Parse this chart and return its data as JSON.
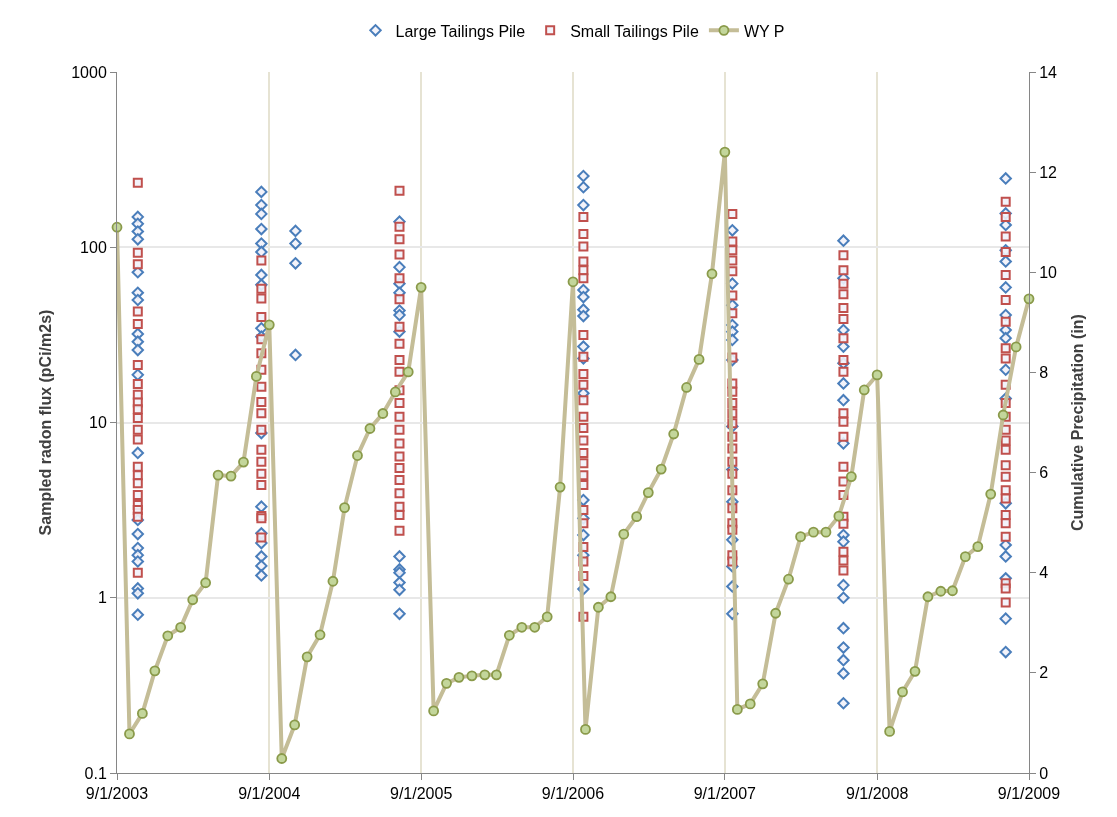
{
  "chart_data": {
    "type": "scatter",
    "ylabel": "Sampled radon flux (pCi/m2s)",
    "y2label": "Cumulative Precipitation (in)",
    "log": "y",
    "grid": true,
    "legend": "top",
    "xlim": [
      "2003-09-01",
      "2009-09-01"
    ],
    "xticks": [
      {
        "value": "2003-09-01",
        "label": "9/1/2003"
      },
      {
        "value": "2004-09-01",
        "label": "9/1/2004"
      },
      {
        "value": "2005-09-01",
        "label": "9/1/2005"
      },
      {
        "value": "2006-09-01",
        "label": "9/1/2006"
      },
      {
        "value": "2007-09-01",
        "label": "9/1/2007"
      },
      {
        "value": "2008-09-01",
        "label": "9/1/2008"
      },
      {
        "value": "2009-09-01",
        "label": "9/1/2009"
      }
    ],
    "ylim": [
      0.1,
      1000
    ],
    "yticks": [
      0.1,
      1,
      10,
      100,
      1000
    ],
    "y2lim": [
      0,
      14
    ],
    "y2ticks": [
      0,
      2,
      4,
      6,
      8,
      10,
      12,
      14
    ],
    "series": [
      {
        "name": "Large Tailings Pile",
        "marker": "diamond",
        "color": "#4a7ebb",
        "x": [
          "2003-10-21",
          "2003-10-21",
          "2003-10-21",
          "2003-10-21",
          "2003-10-21",
          "2003-10-21",
          "2003-10-21",
          "2003-10-21",
          "2003-10-21",
          "2003-10-21",
          "2003-10-21",
          "2003-10-21",
          "2003-10-21",
          "2003-10-21",
          "2003-10-21",
          "2003-10-21",
          "2003-10-21",
          "2003-10-21",
          "2003-10-21",
          "2003-10-21",
          "2004-08-13",
          "2004-08-13",
          "2004-08-13",
          "2004-08-13",
          "2004-08-13",
          "2004-08-13",
          "2004-08-13",
          "2004-08-13",
          "2004-08-13",
          "2004-08-13",
          "2004-08-13",
          "2004-08-13",
          "2004-08-13",
          "2004-08-13",
          "2004-08-13",
          "2004-08-13",
          "2004-08-13",
          "2004-11-03",
          "2004-11-03",
          "2004-11-03",
          "2004-11-03",
          "2005-07-11",
          "2005-07-11",
          "2005-07-11",
          "2005-07-11",
          "2005-07-11",
          "2005-07-11",
          "2005-07-11",
          "2005-07-11",
          "2005-07-11",
          "2005-07-11",
          "2005-07-11",
          "2005-07-11",
          "2005-07-11",
          "2006-09-26",
          "2006-09-26",
          "2006-09-26",
          "2006-09-26",
          "2006-09-26",
          "2006-09-26",
          "2006-09-26",
          "2006-09-26",
          "2006-09-26",
          "2006-09-26",
          "2006-09-26",
          "2006-09-26",
          "2006-09-26",
          "2006-09-26",
          "2006-09-26",
          "2007-09-19",
          "2007-09-19",
          "2007-09-19",
          "2007-09-19",
          "2007-09-19",
          "2007-09-19",
          "2007-09-19",
          "2007-09-19",
          "2007-09-19",
          "2007-09-19",
          "2007-09-19",
          "2007-09-19",
          "2007-09-19",
          "2007-09-19",
          "2008-06-12",
          "2008-06-12",
          "2008-06-12",
          "2008-06-12",
          "2008-06-12",
          "2008-06-12",
          "2008-06-12",
          "2008-06-12",
          "2008-06-12",
          "2008-06-12",
          "2008-06-12",
          "2008-06-12",
          "2008-06-12",
          "2008-06-12",
          "2008-06-12",
          "2008-06-12",
          "2008-06-12",
          "2009-07-07",
          "2009-07-07",
          "2009-07-07",
          "2009-07-07",
          "2009-07-07",
          "2009-07-07",
          "2009-07-07",
          "2009-07-07",
          "2009-07-07",
          "2009-07-07",
          "2009-07-07",
          "2009-07-07",
          "2009-07-07",
          "2009-07-07",
          "2009-07-07",
          "2009-07-07",
          "2009-07-07"
        ],
        "values": [
          149,
          136,
          123,
          111,
          72,
          55,
          50,
          32,
          28.9,
          25.9,
          18.7,
          6.7,
          2.78,
          2.31,
          1.92,
          1.75,
          1.61,
          1.13,
          1.06,
          0.8,
          207,
          174,
          155,
          127,
          105,
          94,
          69.5,
          61,
          34.5,
          30.9,
          8.7,
          3.31,
          2.33,
          2.05,
          1.72,
          1.52,
          1.34,
          124,
          105,
          81,
          24.3,
          140,
          77,
          62,
          55,
          43.5,
          41,
          33,
          1.72,
          1.45,
          1.39,
          1.22,
          1.11,
          0.81,
          255,
          220,
          174,
          57,
          52,
          44,
          40.5,
          27.1,
          23.2,
          14.7,
          3.61,
          2.84,
          2.28,
          1.75,
          1.12,
          125,
          62,
          46.7,
          36,
          33,
          29.6,
          22.7,
          9.5,
          5.4,
          3.53,
          2.14,
          1.51,
          1.16,
          0.81,
          109,
          66.5,
          33.7,
          27.1,
          21.8,
          16.7,
          13.4,
          7.6,
          2.28,
          2.09,
          1.18,
          1.0,
          0.67,
          0.52,
          0.44,
          0.37,
          0.25,
          247,
          156,
          134,
          96,
          83,
          59,
          41,
          33.7,
          30.3,
          20,
          13.7,
          3.46,
          2.0,
          1.72,
          1.29,
          0.76,
          0.49
        ]
      },
      {
        "name": "Small Tailings Pile",
        "marker": "square",
        "color": "#c0504d",
        "x": [
          "2003-10-21",
          "2003-10-21",
          "2003-10-21",
          "2003-10-21",
          "2003-10-21",
          "2003-10-21",
          "2003-10-21",
          "2003-10-21",
          "2003-10-21",
          "2003-10-21",
          "2003-10-21",
          "2003-10-21",
          "2003-10-21",
          "2003-10-21",
          "2003-10-21",
          "2003-10-21",
          "2003-10-21",
          "2003-10-21",
          "2003-10-21",
          "2003-10-21",
          "2003-10-21",
          "2004-08-13",
          "2004-08-13",
          "2004-08-13",
          "2004-08-13",
          "2004-08-13",
          "2004-08-13",
          "2004-08-13",
          "2004-08-13",
          "2004-08-13",
          "2004-08-13",
          "2004-08-13",
          "2004-08-13",
          "2004-08-13",
          "2004-08-13",
          "2004-08-13",
          "2004-08-13",
          "2004-08-13",
          "2004-08-13",
          "2005-07-11",
          "2005-07-11",
          "2005-07-11",
          "2005-07-11",
          "2005-07-11",
          "2005-07-11",
          "2005-07-11",
          "2005-07-11",
          "2005-07-11",
          "2005-07-11",
          "2005-07-11",
          "2005-07-11",
          "2005-07-11",
          "2005-07-11",
          "2005-07-11",
          "2005-07-11",
          "2005-07-11",
          "2005-07-11",
          "2005-07-11",
          "2005-07-11",
          "2005-07-11",
          "2005-07-11",
          "2006-09-26",
          "2006-09-26",
          "2006-09-26",
          "2006-09-26",
          "2006-09-26",
          "2006-09-26",
          "2006-09-26",
          "2006-09-26",
          "2006-09-26",
          "2006-09-26",
          "2006-09-26",
          "2006-09-26",
          "2006-09-26",
          "2006-09-26",
          "2006-09-26",
          "2006-09-26",
          "2006-09-26",
          "2006-09-26",
          "2006-09-26",
          "2006-09-26",
          "2006-09-26",
          "2006-09-26",
          "2006-09-26",
          "2006-09-26",
          "2007-09-19",
          "2007-09-19",
          "2007-09-19",
          "2007-09-19",
          "2007-09-19",
          "2007-09-19",
          "2007-09-19",
          "2007-09-19",
          "2007-09-19",
          "2007-09-19",
          "2007-09-19",
          "2007-09-19",
          "2007-09-19",
          "2007-09-19",
          "2007-09-19",
          "2007-09-19",
          "2007-09-19",
          "2007-09-19",
          "2007-09-19",
          "2007-09-19",
          "2007-09-19",
          "2007-09-19",
          "2007-09-19",
          "2008-06-12",
          "2008-06-12",
          "2008-06-12",
          "2008-06-12",
          "2008-06-12",
          "2008-06-12",
          "2008-06-12",
          "2008-06-12",
          "2008-06-12",
          "2008-06-12",
          "2008-06-12",
          "2008-06-12",
          "2008-06-12",
          "2008-06-12",
          "2008-06-12",
          "2008-06-12",
          "2008-06-12",
          "2008-06-12",
          "2008-06-12",
          "2008-06-12",
          "2009-07-07",
          "2009-07-07",
          "2009-07-07",
          "2009-07-07",
          "2009-07-07",
          "2009-07-07",
          "2009-07-07",
          "2009-07-07",
          "2009-07-07",
          "2009-07-07",
          "2009-07-07",
          "2009-07-07",
          "2009-07-07",
          "2009-07-07",
          "2009-07-07",
          "2009-07-07",
          "2009-07-07",
          "2009-07-07",
          "2009-07-07",
          "2009-07-07",
          "2009-07-07",
          "2009-07-07",
          "2009-07-07",
          "2009-07-07",
          "2009-07-07"
        ],
        "values": [
          233,
          93,
          80,
          43,
          36.5,
          21.3,
          16.6,
          14.4,
          13,
          11.9,
          10.6,
          9.1,
          8.0,
          5.6,
          5.0,
          4.5,
          3.86,
          3.38,
          3.17,
          2.9,
          1.39,
          84,
          58,
          51,
          40,
          29.9,
          24.8,
          20,
          16,
          13.1,
          11.3,
          9.1,
          7.0,
          5.97,
          5.1,
          4.4,
          2.93,
          2.84,
          2.21,
          210,
          131,
          111,
          91,
          66.5,
          50.5,
          35.2,
          28.1,
          22.7,
          19.5,
          15.3,
          12.9,
          10.8,
          9.1,
          7.6,
          6.4,
          5.5,
          4.7,
          3.95,
          3.31,
          2.97,
          2.41,
          149,
          119,
          101,
          83,
          74,
          66.5,
          31.6,
          23.7,
          18.9,
          16.4,
          13.4,
          10.8,
          9.3,
          7.9,
          6.7,
          5.85,
          5.0,
          4.4,
          3.17,
          2.66,
          1.95,
          1.61,
          1.33,
          0.78,
          155,
          108,
          96,
          84,
          73,
          53,
          42,
          23.5,
          16.7,
          15,
          12.9,
          11.3,
          9.9,
          8.3,
          7.1,
          5.97,
          5.1,
          4.1,
          3.24,
          2.66,
          2.44,
          1.75,
          1.61,
          90,
          74,
          62,
          54,
          45,
          39,
          30.3,
          22.7,
          19.5,
          11.3,
          10.1,
          8.3,
          5.6,
          4.6,
          3.86,
          2.9,
          2.64,
          1.83,
          1.63,
          1.43,
          182,
          149,
          115,
          94,
          69.5,
          50,
          37.6,
          26.5,
          23.2,
          16.4,
          12.9,
          10.8,
          9.1,
          7.9,
          7.0,
          5.7,
          4.9,
          4.1,
          3.69,
          2.97,
          2.66,
          2.23,
          1.21,
          1.13,
          0.94
        ]
      },
      {
        "name": "WY P",
        "type": "line",
        "axis": "y2",
        "marker": "circle",
        "line_style": "solid",
        "color": "#c4bd97",
        "x": [
          "2003-09-01",
          "2003-10-01",
          "2003-11-01",
          "2003-12-01",
          "2004-01-01",
          "2004-02-01",
          "2004-03-01",
          "2004-04-01",
          "2004-05-01",
          "2004-06-01",
          "2004-07-01",
          "2004-08-01",
          "2004-09-01",
          "2004-10-01",
          "2004-11-01",
          "2004-12-01",
          "2005-01-01",
          "2005-02-01",
          "2005-03-01",
          "2005-04-01",
          "2005-05-01",
          "2005-06-01",
          "2005-07-01",
          "2005-08-01",
          "2005-09-01",
          "2005-10-01",
          "2005-11-01",
          "2005-12-01",
          "2006-01-01",
          "2006-02-01",
          "2006-03-01",
          "2006-04-01",
          "2006-05-01",
          "2006-06-01",
          "2006-07-01",
          "2006-08-01",
          "2006-09-01",
          "2006-10-01",
          "2006-11-01",
          "2006-12-01",
          "2007-01-01",
          "2007-02-01",
          "2007-03-01",
          "2007-04-01",
          "2007-05-01",
          "2007-06-01",
          "2007-07-01",
          "2007-08-01",
          "2007-09-01",
          "2007-10-01",
          "2007-11-01",
          "2007-12-01",
          "2008-01-01",
          "2008-02-01",
          "2008-03-01",
          "2008-04-01",
          "2008-05-01",
          "2008-06-01",
          "2008-07-01",
          "2008-08-01",
          "2008-09-01",
          "2008-10-01",
          "2008-11-01",
          "2008-12-01",
          "2009-01-01",
          "2009-02-01",
          "2009-03-01",
          "2009-04-01",
          "2009-05-01",
          "2009-06-01",
          "2009-07-01",
          "2009-08-01",
          "2009-09-01"
        ],
        "values": [
          10.9,
          0.78,
          1.19,
          2.04,
          2.74,
          2.91,
          3.46,
          3.8,
          5.95,
          5.93,
          6.21,
          7.92,
          8.95,
          0.29,
          0.96,
          2.32,
          2.76,
          3.83,
          5.3,
          6.34,
          6.88,
          7.18,
          7.61,
          8.01,
          9.7,
          1.24,
          1.79,
          1.91,
          1.94,
          1.96,
          1.96,
          2.75,
          2.91,
          2.91,
          3.12,
          5.71,
          9.81,
          0.87,
          3.31,
          3.52,
          4.77,
          5.12,
          5.6,
          6.07,
          6.77,
          7.7,
          8.26,
          9.97,
          12.4,
          1.27,
          1.38,
          1.78,
          3.19,
          3.87,
          4.72,
          4.81,
          4.81,
          5.13,
          5.92,
          7.65,
          7.95,
          0.83,
          1.62,
          2.03,
          3.52,
          3.63,
          3.64,
          4.32,
          4.52,
          5.57,
          7.15,
          8.51,
          9.47
        ]
      }
    ]
  }
}
